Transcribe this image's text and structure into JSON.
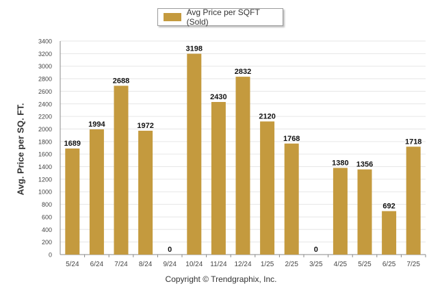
{
  "legend": {
    "label": "Avg Price per SQFT (Sold)"
  },
  "credit": "Copyright © Trendgraphix, Inc.",
  "colors": {
    "bar": "#C49A3E",
    "grid": "#e6e6e6",
    "axis": "#888888"
  },
  "chart_data": {
    "type": "bar",
    "title": "",
    "xlabel": "",
    "ylabel": "Avg. Price per SQ. FT.",
    "ylim": [
      0,
      3400
    ],
    "yticks": [
      0,
      200,
      400,
      600,
      800,
      1000,
      1200,
      1400,
      1600,
      1800,
      2000,
      2200,
      2400,
      2600,
      2800,
      3000,
      3200,
      3400
    ],
    "categories": [
      "5/24",
      "6/24",
      "7/24",
      "8/24",
      "9/24",
      "10/24",
      "11/24",
      "12/24",
      "1/25",
      "2/25",
      "3/25",
      "4/25",
      "5/25",
      "6/25",
      "7/25"
    ],
    "series": [
      {
        "name": "Avg Price per SQFT (Sold)",
        "values": [
          1689,
          1994,
          2688,
          1972,
          0,
          3198,
          2430,
          2832,
          2120,
          1768,
          0,
          1380,
          1356,
          692,
          1718
        ]
      }
    ],
    "grid": true,
    "legend_position": "top-center",
    "data_labels": true
  }
}
